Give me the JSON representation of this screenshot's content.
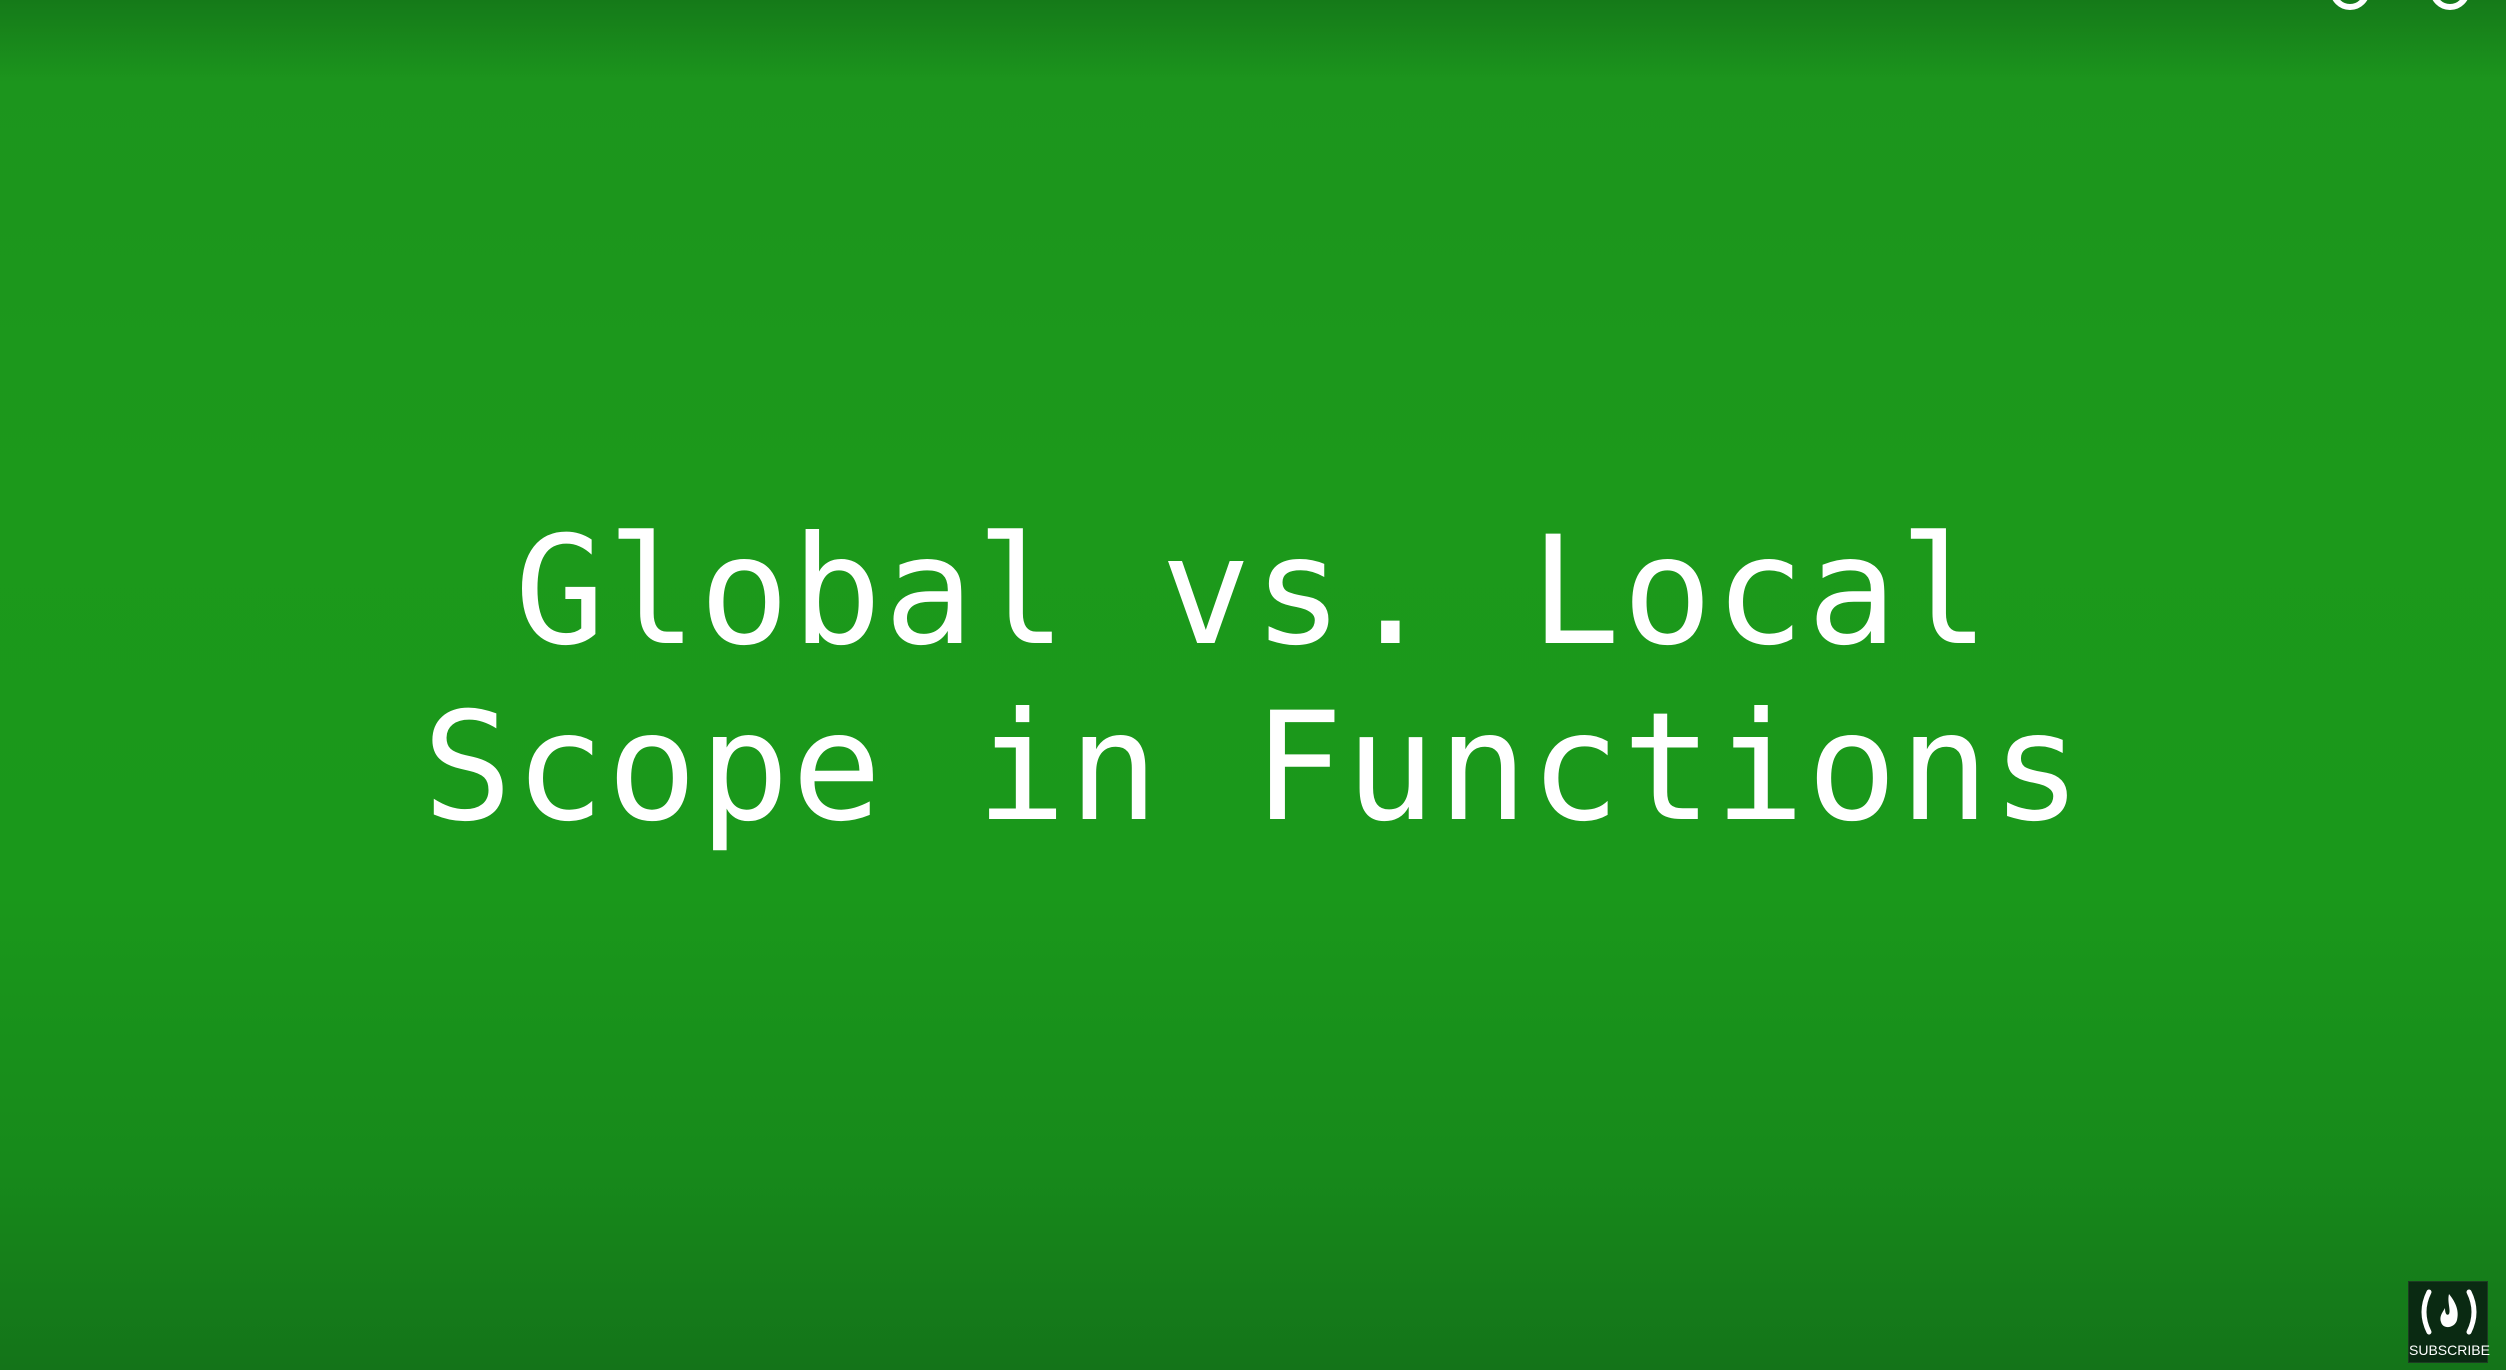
{
  "slide": {
    "title_line1": "Global vs. Local",
    "title_line2": "Scope in Functions",
    "background_color": "#1c991b",
    "text_color": "#ffffff"
  },
  "overlay": {
    "subscribe_label": "SUBSCRIBE",
    "subscribe_icon": "freecodecamp-flame-icon",
    "top_right_icons": [
      "circle-icon",
      "circle-icon"
    ]
  }
}
